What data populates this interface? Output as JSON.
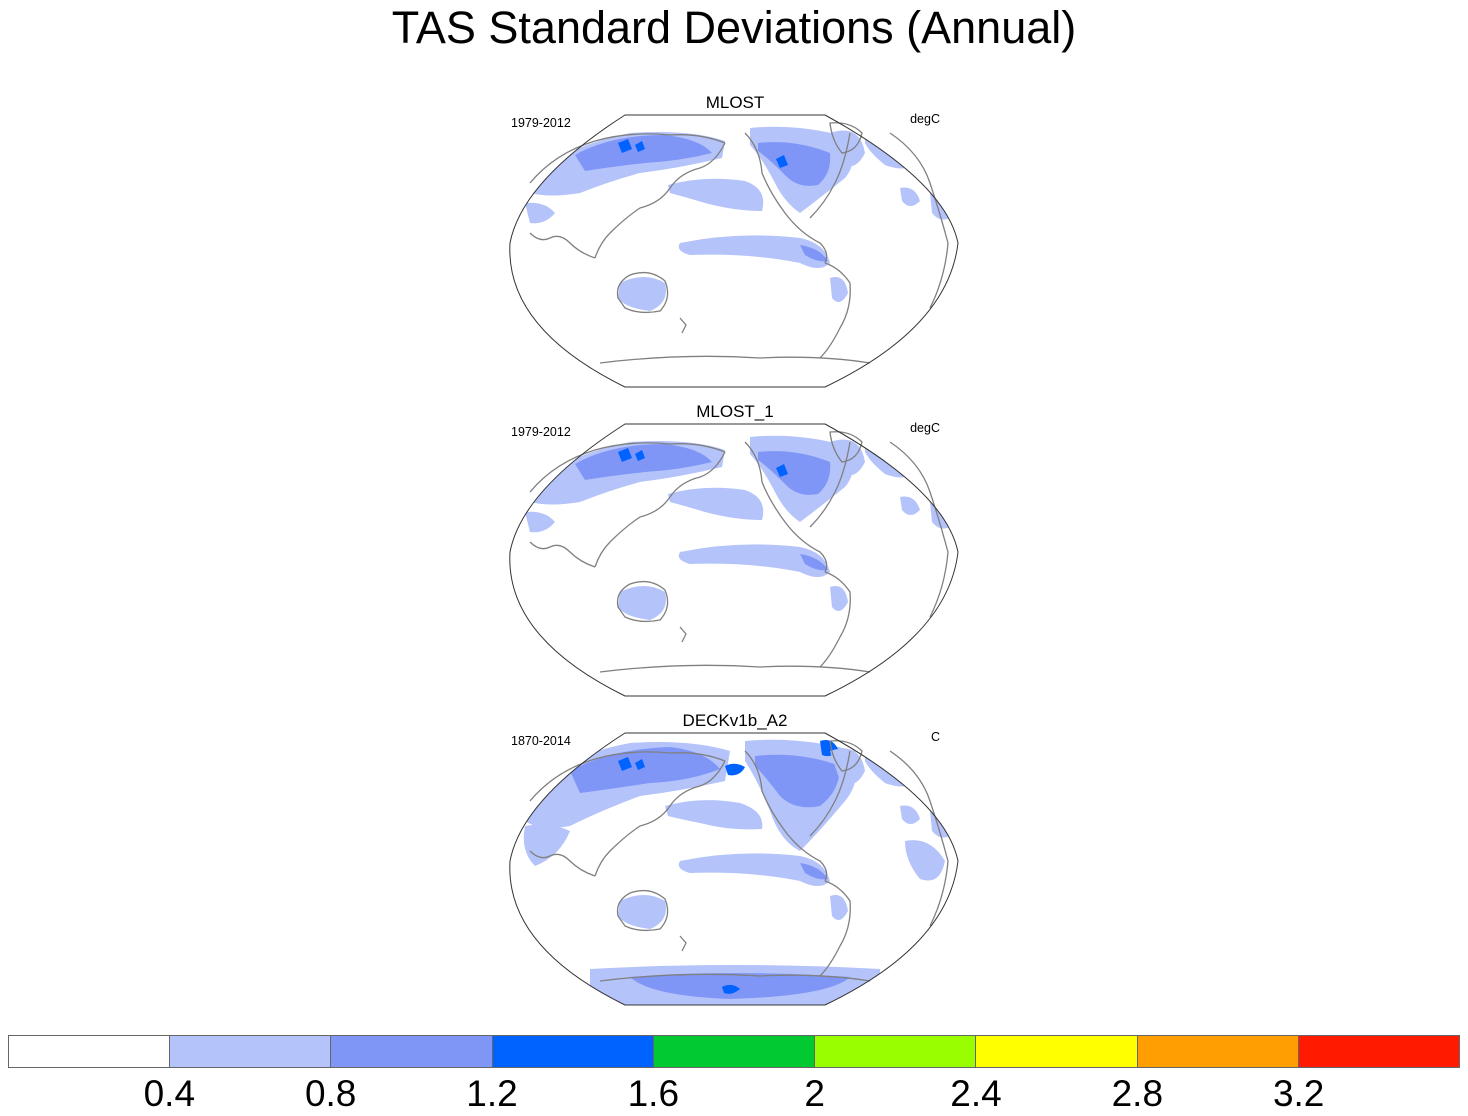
{
  "title": "TAS Standard Deviations (Annual)",
  "panels": [
    {
      "name": "MLOST",
      "period": "1979-2012",
      "units": "degC",
      "antarctic_coverage": false
    },
    {
      "name": "MLOST_1",
      "period": "1979-2012",
      "units": "degC",
      "antarctic_coverage": false
    },
    {
      "name": "DECKv1b_A2",
      "period": "1870-2014",
      "units": "C",
      "antarctic_coverage": true
    }
  ],
  "colorbar": {
    "colors": [
      "#ffffff",
      "#b4c3fa",
      "#8096f7",
      "#0062ff",
      "#00c932",
      "#99ff00",
      "#ffff00",
      "#ff9e00",
      "#ff1a00"
    ],
    "labels": [
      "0.4",
      "0.8",
      "1.2",
      "1.6",
      "2",
      "2.4",
      "2.8",
      "3.2"
    ]
  },
  "colors": {
    "coast": "#808080",
    "border": "#333333"
  }
}
